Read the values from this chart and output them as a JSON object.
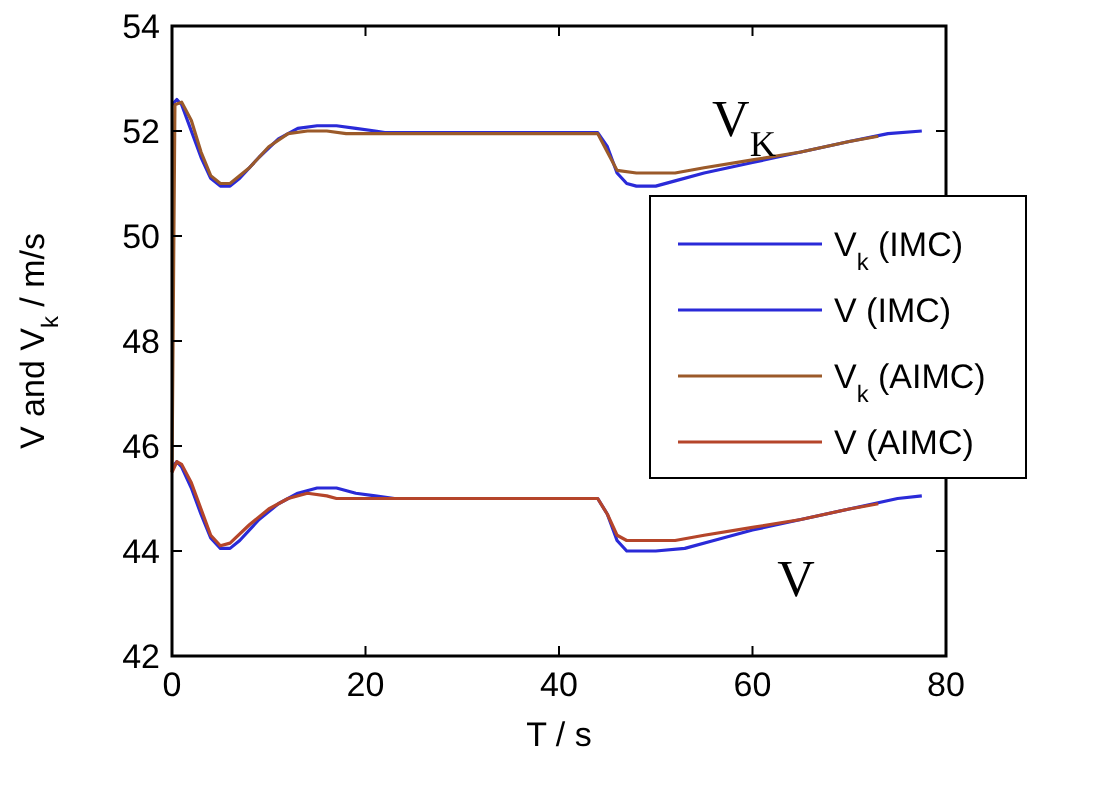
{
  "chart_data": {
    "type": "line",
    "xlabel": "T / s",
    "ylabel": "V and V$_{k}$ / m/s",
    "xlim": [
      0,
      80
    ],
    "ylim": [
      42,
      54
    ],
    "xticks": [
      0,
      20,
      40,
      60,
      80
    ],
    "yticks": [
      42,
      44,
      46,
      48,
      50,
      52,
      54
    ],
    "grid": false,
    "legend": "right",
    "marker": "none",
    "line_style": "solid",
    "annotations": [
      "V$_{K}$",
      "V"
    ],
    "series": [
      {
        "name": "V$_{k}$ (IMC)",
        "color": "#2a2ad8",
        "x": [
          0,
          0.5,
          1,
          2,
          3,
          4,
          5,
          6,
          7,
          9,
          11,
          13,
          15,
          17,
          19,
          21,
          22,
          44,
          45,
          46,
          47,
          48,
          50,
          52,
          55,
          60,
          65,
          70,
          74,
          77.5
        ],
        "values": [
          52.5,
          52.6,
          52.5,
          52.0,
          51.5,
          51.1,
          50.95,
          50.95,
          51.1,
          51.5,
          51.85,
          52.05,
          52.1,
          52.1,
          52.05,
          52.0,
          51.97,
          51.97,
          51.7,
          51.2,
          51.0,
          50.95,
          50.95,
          51.05,
          51.2,
          51.4,
          51.6,
          51.8,
          51.95,
          52.0
        ]
      },
      {
        "name": "V (IMC)",
        "color": "#2a2ad8",
        "x": [
          0,
          0.5,
          1,
          2,
          3,
          4,
          5,
          6,
          7,
          9,
          11,
          13,
          15,
          17,
          19,
          21,
          23,
          44,
          45,
          46,
          47,
          50,
          53,
          56,
          60,
          65,
          70,
          75,
          77.5
        ],
        "values": [
          45.6,
          45.7,
          45.6,
          45.2,
          44.7,
          44.25,
          44.05,
          44.05,
          44.2,
          44.6,
          44.9,
          45.1,
          45.2,
          45.2,
          45.1,
          45.05,
          45.0,
          45.0,
          44.7,
          44.2,
          44.0,
          44.0,
          44.05,
          44.2,
          44.4,
          44.6,
          44.8,
          45.0,
          45.05
        ]
      },
      {
        "name": "V$_{k}$ (AIMC)",
        "color": "#9b5a2a",
        "x": [
          0,
          0.3,
          1,
          2,
          3,
          4,
          5,
          6,
          8,
          10,
          12,
          14,
          16,
          18,
          44,
          45,
          46,
          48,
          52,
          55,
          60,
          65,
          70,
          73
        ],
        "values": [
          45.5,
          52.5,
          52.55,
          52.2,
          51.6,
          51.15,
          51.0,
          51.0,
          51.3,
          51.7,
          51.95,
          52.0,
          52.0,
          51.95,
          51.95,
          51.6,
          51.25,
          51.2,
          51.2,
          51.3,
          51.45,
          51.6,
          51.8,
          51.9
        ]
      },
      {
        "name": "V (AIMC)",
        "color": "#b5452a",
        "x": [
          0,
          0.5,
          1,
          2,
          3,
          4,
          5,
          6,
          8,
          10,
          12,
          14,
          16,
          17,
          44,
          45,
          46,
          47,
          52,
          55,
          60,
          65,
          70,
          73
        ],
        "values": [
          45.5,
          45.7,
          45.65,
          45.3,
          44.8,
          44.3,
          44.1,
          44.15,
          44.5,
          44.8,
          45.0,
          45.1,
          45.05,
          45.0,
          45.0,
          44.7,
          44.3,
          44.2,
          44.2,
          44.3,
          44.45,
          44.6,
          44.8,
          44.9
        ]
      }
    ]
  }
}
